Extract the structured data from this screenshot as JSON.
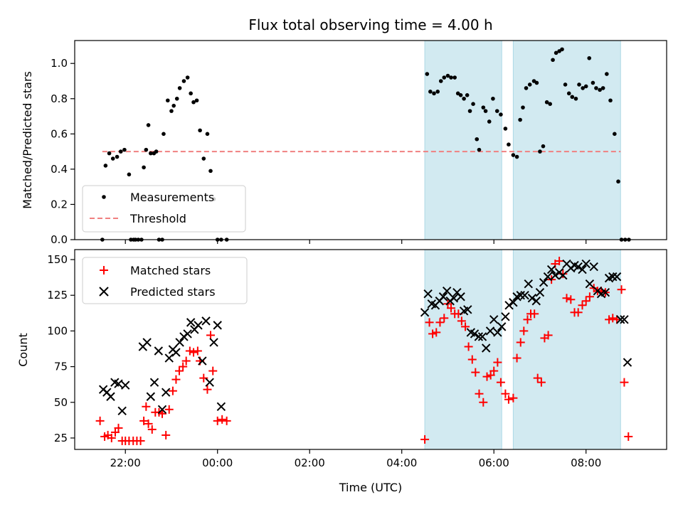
{
  "chart_data": [
    {
      "type": "scatter",
      "title": "Flux total observing time = 4.00 h",
      "xlabel": "",
      "ylabel": "Matched/Predicted stars",
      "xlim": [
        20.9,
        33.75
      ],
      "ylim": [
        0,
        1.13
      ],
      "yticks": [
        {
          "v": 0.0,
          "label": "0.0"
        },
        {
          "v": 0.2,
          "label": "0.2"
        },
        {
          "v": 0.4,
          "label": "0.4"
        },
        {
          "v": 0.6,
          "label": "0.6"
        },
        {
          "v": 0.8,
          "label": "0.8"
        },
        {
          "v": 1.0,
          "label": "1.0"
        }
      ],
      "xticks": [
        22,
        24,
        26,
        28,
        30,
        32
      ],
      "shaded_ranges": [
        [
          28.5,
          30.17
        ],
        [
          30.42,
          32.75
        ]
      ],
      "shade_color": "#add8e6",
      "legend": {
        "position": "lower-left",
        "items": [
          {
            "label": "Measurements",
            "marker": "dot",
            "color": "#000000"
          },
          {
            "label": "Threshold",
            "marker": "dash",
            "color": "#f08080"
          }
        ]
      },
      "threshold": {
        "name": "Threshold",
        "y": 0.5,
        "x_range": [
          21.5,
          32.75
        ],
        "color": "#f08080"
      },
      "series": [
        {
          "name": "Measurements",
          "color": "#000000",
          "marker": "dot",
          "x": [
            21.5,
            21.57,
            21.65,
            21.73,
            21.82,
            21.9,
            21.98,
            22.08,
            22.12,
            22.18,
            22.22,
            22.28,
            22.35,
            22.4,
            22.45,
            22.5,
            22.55,
            22.62,
            22.67,
            22.73,
            22.8,
            22.83,
            22.92,
            23.0,
            23.05,
            23.12,
            23.18,
            23.27,
            23.35,
            23.42,
            23.48,
            23.55,
            23.62,
            23.7,
            23.78,
            23.85,
            23.92,
            24.0,
            24.08,
            24.2,
            28.55,
            28.62,
            28.7,
            28.78,
            28.85,
            28.92,
            29.0,
            29.07,
            29.15,
            29.22,
            29.28,
            29.35,
            29.42,
            29.48,
            29.55,
            29.63,
            29.68,
            29.77,
            29.82,
            29.9,
            29.98,
            30.07,
            30.15,
            30.25,
            30.32,
            30.42,
            30.5,
            30.57,
            30.63,
            30.7,
            30.78,
            30.87,
            30.93,
            31.0,
            31.07,
            31.15,
            31.22,
            31.28,
            31.35,
            31.42,
            31.48,
            31.55,
            31.63,
            31.7,
            31.78,
            31.85,
            31.93,
            32.0,
            32.07,
            32.15,
            32.22,
            32.3,
            32.37,
            32.45,
            32.53,
            32.62,
            32.7,
            32.77,
            32.85,
            32.93
          ],
          "y": [
            0.0,
            0.42,
            0.49,
            0.46,
            0.47,
            0.5,
            0.51,
            0.37,
            0.0,
            0.0,
            0.0,
            0.0,
            0.0,
            0.41,
            0.51,
            0.65,
            0.49,
            0.49,
            0.5,
            0.0,
            0.0,
            0.6,
            0.79,
            0.73,
            0.76,
            0.8,
            0.86,
            0.9,
            0.92,
            0.83,
            0.78,
            0.79,
            0.62,
            0.46,
            0.6,
            0.39,
            0.23,
            0.0,
            0.0,
            0.0,
            0.94,
            0.84,
            0.83,
            0.84,
            0.9,
            0.92,
            0.93,
            0.92,
            0.92,
            0.83,
            0.82,
            0.8,
            0.82,
            0.73,
            0.77,
            0.57,
            0.51,
            0.75,
            0.73,
            0.67,
            0.8,
            0.73,
            0.71,
            0.63,
            0.54,
            0.48,
            0.47,
            0.68,
            0.75,
            0.86,
            0.88,
            0.9,
            0.89,
            0.5,
            0.53,
            0.78,
            0.77,
            1.02,
            1.06,
            1.07,
            1.08,
            0.88,
            0.83,
            0.81,
            0.8,
            0.88,
            0.86,
            0.87,
            1.03,
            0.89,
            0.86,
            0.85,
            0.86,
            0.94,
            0.79,
            0.6,
            0.33,
            0.0,
            0.0,
            0.0
          ]
        }
      ]
    },
    {
      "type": "scatter",
      "title": "",
      "xlabel": "Time (UTC)",
      "ylabel": "Count",
      "xlim": [
        20.9,
        33.75
      ],
      "ylim": [
        17,
        157
      ],
      "yticks": [
        {
          "v": 25,
          "label": "25"
        },
        {
          "v": 50,
          "label": "50"
        },
        {
          "v": 75,
          "label": "75"
        },
        {
          "v": 100,
          "label": "100"
        },
        {
          "v": 125,
          "label": "125"
        },
        {
          "v": 150,
          "label": "150"
        }
      ],
      "xticks": [
        {
          "v": 22,
          "label": "22:00"
        },
        {
          "v": 24,
          "label": "00:00"
        },
        {
          "v": 26,
          "label": "02:00"
        },
        {
          "v": 28,
          "label": "04:00"
        },
        {
          "v": 30,
          "label": "06:00"
        },
        {
          "v": 32,
          "label": "08:00"
        }
      ],
      "shaded_ranges": [
        [
          28.5,
          30.17
        ],
        [
          30.42,
          32.75
        ]
      ],
      "shade_color": "#add8e6",
      "legend": {
        "position": "upper-left",
        "items": [
          {
            "label": "Matched stars",
            "marker": "plus",
            "color": "#ff0000"
          },
          {
            "label": "Predicted stars",
            "marker": "x",
            "color": "#000000"
          }
        ]
      },
      "series": [
        {
          "name": "Matched stars",
          "color": "#ff0000",
          "marker": "plus",
          "x": [
            21.45,
            21.55,
            21.62,
            21.7,
            21.78,
            21.85,
            21.93,
            22.0,
            22.08,
            22.17,
            22.25,
            22.33,
            22.4,
            22.45,
            22.5,
            22.58,
            22.65,
            22.73,
            22.8,
            22.88,
            22.95,
            23.03,
            23.1,
            23.17,
            23.25,
            23.32,
            23.4,
            23.48,
            23.57,
            23.62,
            23.7,
            23.78,
            23.85,
            23.9,
            24.0,
            24.1,
            24.2,
            28.5,
            28.6,
            28.67,
            28.75,
            28.83,
            28.92,
            29.0,
            29.07,
            29.15,
            29.23,
            29.3,
            29.38,
            29.45,
            29.53,
            29.6,
            29.68,
            29.77,
            29.85,
            29.93,
            30.0,
            30.08,
            30.15,
            30.25,
            30.32,
            30.42,
            30.5,
            30.58,
            30.65,
            30.73,
            30.8,
            30.88,
            30.95,
            31.03,
            31.1,
            31.18,
            31.25,
            31.33,
            31.42,
            31.5,
            31.58,
            31.67,
            31.75,
            31.83,
            31.92,
            32.0,
            32.08,
            32.17,
            32.25,
            32.33,
            32.42,
            32.5,
            32.58,
            32.67,
            32.77,
            32.83,
            32.92
          ],
          "y": [
            37,
            26,
            27,
            25,
            29,
            32,
            23,
            23,
            23,
            23,
            23,
            23,
            37,
            47,
            35,
            31,
            43,
            43,
            42,
            27,
            45,
            58,
            66,
            72,
            75,
            79,
            86,
            85,
            86,
            79,
            67,
            59,
            97,
            72,
            37,
            38,
            37,
            24,
            106,
            98,
            99,
            106,
            109,
            119,
            116,
            112,
            112,
            107,
            103,
            89,
            80,
            71,
            56,
            50,
            68,
            69,
            72,
            78,
            64,
            56,
            52,
            53,
            81,
            92,
            100,
            108,
            112,
            112,
            67,
            64,
            95,
            97,
            136,
            147,
            149,
            140,
            123,
            122,
            113,
            113,
            118,
            121,
            124,
            130,
            128,
            128,
            127,
            108,
            109,
            108,
            129,
            64,
            26
          ]
        },
        {
          "name": "Predicted stars",
          "color": "#000000",
          "marker": "x",
          "x": [
            21.52,
            21.6,
            21.68,
            21.77,
            21.85,
            21.93,
            22.0,
            22.38,
            22.47,
            22.55,
            22.63,
            22.72,
            22.8,
            22.88,
            22.95,
            23.03,
            23.1,
            23.18,
            23.27,
            23.35,
            23.42,
            23.5,
            23.58,
            23.67,
            23.75,
            23.83,
            23.92,
            24.0,
            24.08,
            28.5,
            28.57,
            28.65,
            28.73,
            28.82,
            28.9,
            28.98,
            29.05,
            29.13,
            29.2,
            29.28,
            29.35,
            29.43,
            29.5,
            29.58,
            29.67,
            29.75,
            29.83,
            29.92,
            30.0,
            30.08,
            30.17,
            30.25,
            30.33,
            30.42,
            30.5,
            30.58,
            30.67,
            30.75,
            30.83,
            30.92,
            31.0,
            31.08,
            31.17,
            31.25,
            31.33,
            31.42,
            31.5,
            31.58,
            31.67,
            31.75,
            31.83,
            31.92,
            32.0,
            32.08,
            32.17,
            32.25,
            32.33,
            32.42,
            32.5,
            32.58,
            32.67,
            32.75,
            32.83,
            32.9
          ],
          "y": [
            59,
            57,
            54,
            64,
            63,
            44,
            62,
            89,
            92,
            54,
            64,
            86,
            45,
            57,
            81,
            87,
            85,
            92,
            96,
            98,
            106,
            101,
            104,
            79,
            107,
            64,
            92,
            104,
            47,
            113,
            126,
            119,
            118,
            121,
            124,
            128,
            121,
            123,
            127,
            124,
            114,
            115,
            99,
            98,
            96,
            96,
            88,
            100,
            108,
            99,
            103,
            110,
            118,
            120,
            124,
            125,
            125,
            133,
            123,
            121,
            127,
            134,
            138,
            143,
            139,
            141,
            139,
            147,
            144,
            146,
            145,
            143,
            147,
            133,
            145,
            128,
            126,
            127,
            137,
            138,
            138,
            108,
            108,
            78
          ]
        }
      ]
    }
  ]
}
